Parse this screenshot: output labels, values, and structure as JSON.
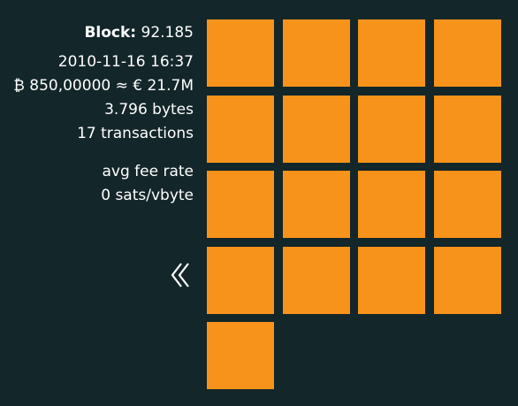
{
  "block": {
    "label": "Block:",
    "height": "92.185",
    "timestamp": "2010-11-16 16:37",
    "value": "₿ 850,00000 ≈ € 21.7M",
    "size": "3.796 bytes",
    "tx_count": "17 transactions",
    "fee_label": "avg fee rate",
    "fee_value": "0 sats/vbyte"
  },
  "nav": {
    "back_icon": "chevron-left-icon"
  },
  "transactions": {
    "count": 17,
    "color": "#f7931a",
    "background": "#13262a"
  }
}
